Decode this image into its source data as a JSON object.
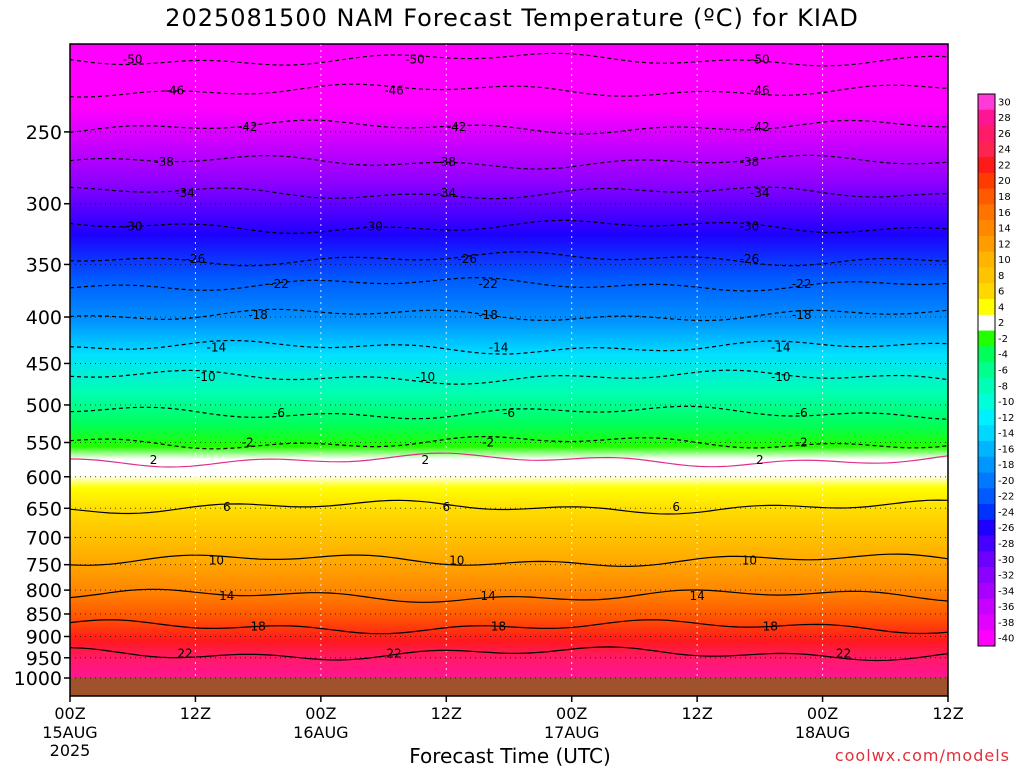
{
  "title": "2025081500 NAM Forecast Temperature (ºC) for KIAD",
  "xlabel": "Forecast Time (UTC)",
  "credit": "coolwx.com/models",
  "chart_data": {
    "type": "heatmap",
    "y_axis": {
      "ticks": [
        250,
        300,
        350,
        400,
        450,
        500,
        550,
        600,
        650,
        700,
        750,
        800,
        850,
        900,
        950,
        1000
      ],
      "range": [
        200,
        1000
      ],
      "scale": "log",
      "inverted": true
    },
    "x_axis": {
      "range": [
        0,
        84
      ],
      "ticks": [
        {
          "hour": 0,
          "label": "00Z",
          "sub": "15AUG",
          "sub2": "2025"
        },
        {
          "hour": 12,
          "label": "12Z",
          "sub": "",
          "sub2": ""
        },
        {
          "hour": 24,
          "label": "00Z",
          "sub": "16AUG",
          "sub2": ""
        },
        {
          "hour": 36,
          "label": "12Z",
          "sub": "",
          "sub2": ""
        },
        {
          "hour": 48,
          "label": "00Z",
          "sub": "17AUG",
          "sub2": ""
        },
        {
          "hour": 60,
          "label": "12Z",
          "sub": "",
          "sub2": ""
        },
        {
          "hour": 72,
          "label": "00Z",
          "sub": "18AUG",
          "sub2": ""
        },
        {
          "hour": 84,
          "label": "12Z",
          "sub": "",
          "sub2": ""
        }
      ]
    },
    "colorbar": {
      "labels": [
        "30",
        "28",
        "26",
        "24",
        "22",
        "20",
        "18",
        "16",
        "14",
        "12",
        "10",
        "8",
        "6",
        "4",
        "2",
        "-2",
        "-4",
        "-6",
        "-8",
        "-10",
        "-12",
        "-14",
        "-16",
        "-18",
        "-20",
        "-22",
        "-24",
        "-26",
        "-28",
        "-30",
        "-32",
        "-34",
        "-36",
        "-38",
        "-40"
      ],
      "colors": [
        "#ff3ad9",
        "#ff1493",
        "#ff1a6a",
        "#ff2450",
        "#ff1a1a",
        "#ff3b00",
        "#ff5a00",
        "#ff7400",
        "#ff8800",
        "#ff9d00",
        "#ffb400",
        "#ffc400",
        "#ffd800",
        "#ffff00",
        "#ffffff",
        "#22ff00",
        "#00ff5a",
        "#00ff8c",
        "#00ffb5",
        "#00ffd9",
        "#00f0ff",
        "#00d8ff",
        "#00b5ff",
        "#0096ff",
        "#0078ff",
        "#005aff",
        "#0032ff",
        "#1e00ff",
        "#4600ff",
        "#6e00ff",
        "#8c00ff",
        "#a800ff",
        "#c800ff",
        "#e200ff",
        "#ff00ff"
      ]
    },
    "contours": [
      {
        "value": -50,
        "pressure": 208,
        "labels": [
          [
            6,
            -50
          ],
          [
            33,
            -50
          ],
          [
            66,
            -50
          ]
        ]
      },
      {
        "value": -46,
        "pressure": 225,
        "labels": [
          [
            10,
            -46
          ],
          [
            31,
            -46
          ],
          [
            66,
            -46
          ]
        ]
      },
      {
        "value": -42,
        "pressure": 247,
        "labels": [
          [
            17,
            -42
          ],
          [
            37,
            -42
          ],
          [
            66,
            -42
          ]
        ]
      },
      {
        "value": -38,
        "pressure": 270,
        "labels": [
          [
            9,
            -38
          ],
          [
            36,
            -38
          ],
          [
            65,
            -38
          ]
        ]
      },
      {
        "value": -34,
        "pressure": 292,
        "labels": [
          [
            11,
            -34
          ],
          [
            36,
            -34
          ],
          [
            66,
            -34
          ]
        ]
      },
      {
        "value": -30,
        "pressure": 318,
        "labels": [
          [
            6,
            -30
          ],
          [
            29,
            -30
          ],
          [
            65,
            -30
          ]
        ]
      },
      {
        "value": -26,
        "pressure": 345,
        "labels": [
          [
            12,
            -26
          ],
          [
            38,
            -26
          ],
          [
            65,
            -26
          ]
        ]
      },
      {
        "value": -22,
        "pressure": 368,
        "labels": [
          [
            20,
            -22
          ],
          [
            40,
            -22
          ],
          [
            70,
            -22
          ]
        ]
      },
      {
        "value": -18,
        "pressure": 398,
        "labels": [
          [
            18,
            -18
          ],
          [
            40,
            -18
          ],
          [
            70,
            -18
          ]
        ]
      },
      {
        "value": -14,
        "pressure": 432,
        "labels": [
          [
            14,
            -14
          ],
          [
            41,
            -14
          ],
          [
            68,
            -14
          ]
        ]
      },
      {
        "value": -10,
        "pressure": 466,
        "labels": [
          [
            13,
            -10
          ],
          [
            34,
            -10
          ],
          [
            68,
            -10
          ]
        ]
      },
      {
        "value": -6,
        "pressure": 510,
        "labels": [
          [
            20,
            -6
          ],
          [
            42,
            -6
          ],
          [
            70,
            -6
          ]
        ]
      },
      {
        "value": -2,
        "pressure": 550,
        "labels": [
          [
            17,
            -2
          ],
          [
            40,
            -2
          ],
          [
            70,
            -2
          ]
        ]
      },
      {
        "value": 2,
        "pressure": 575,
        "labels": [
          [
            8,
            2
          ],
          [
            34,
            2
          ],
          [
            66,
            2
          ]
        ]
      },
      {
        "value": 6,
        "pressure": 648,
        "labels": [
          [
            15,
            6
          ],
          [
            36,
            6
          ],
          [
            58,
            6
          ]
        ]
      },
      {
        "value": 10,
        "pressure": 742,
        "labels": [
          [
            14,
            10
          ],
          [
            37,
            10
          ],
          [
            65,
            10
          ]
        ]
      },
      {
        "value": 14,
        "pressure": 812,
        "labels": [
          [
            15,
            14
          ],
          [
            40,
            14
          ],
          [
            60,
            14
          ]
        ]
      },
      {
        "value": 18,
        "pressure": 878,
        "labels": [
          [
            18,
            18
          ],
          [
            41,
            18
          ],
          [
            67,
            18
          ]
        ]
      },
      {
        "value": 22,
        "pressure": 940,
        "labels": [
          [
            11,
            22
          ],
          [
            31,
            22
          ],
          [
            74,
            22
          ]
        ]
      }
    ]
  }
}
